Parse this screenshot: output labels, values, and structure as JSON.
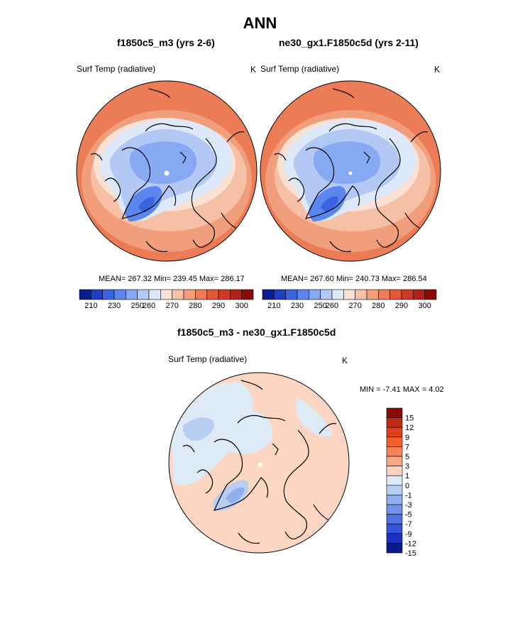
{
  "page_title": "ANN",
  "chart_data": [
    {
      "type": "heatmap",
      "projection": "north-polar-stereographic",
      "title": "f1850c5_m3 (yrs 2-6)",
      "variable": "Surf Temp (radiative)",
      "units": "K",
      "stats_text": "MEAN= 267.32  Min= 239.45  Max= 286.17",
      "stats": {
        "mean": 267.32,
        "min": 239.45,
        "max": 286.17
      },
      "colorbar_ticks": [
        "210",
        "230",
        "250",
        "260",
        "270",
        "280",
        "290",
        "300"
      ]
    },
    {
      "type": "heatmap",
      "projection": "north-polar-stereographic",
      "title": "ne30_gx1.F1850c5d (yrs 2-11)",
      "variable": "Surf Temp (radiative)",
      "units": "K",
      "stats_text": "MEAN= 267.60  Min= 240.73  Max= 286.54",
      "stats": {
        "mean": 267.6,
        "min": 240.73,
        "max": 286.54
      },
      "colorbar_ticks": [
        "210",
        "230",
        "250",
        "260",
        "270",
        "280",
        "290",
        "300"
      ]
    },
    {
      "type": "heatmap",
      "projection": "north-polar-stereographic",
      "title": "f1850c5_m3 - ne30_gx1.F1850c5d",
      "variable": "Surf Temp (radiative)",
      "units": "K",
      "stats_text": "MIN =  -7.41 MAX =   4.02",
      "stats": {
        "min": -7.41,
        "max": 4.02
      },
      "colorbar_ticks": [
        "15",
        "12",
        "9",
        "7",
        "5",
        "3",
        "1",
        "0",
        "-1",
        "-3",
        "-5",
        "-7",
        "-9",
        "-12",
        "-15"
      ]
    }
  ],
  "colors": {
    "abs_palette": [
      "#0b1d8c",
      "#1e3ec4",
      "#3a63e0",
      "#5b85ef",
      "#87a8f3",
      "#b4c8f5",
      "#dde8f8",
      "#fbe1d3",
      "#f6c0a7",
      "#f19e7c",
      "#ec7c56",
      "#e2593a",
      "#d03a22",
      "#b22113",
      "#8a0b08"
    ],
    "diff_palette": [
      "#8a0b08",
      "#c02a12",
      "#e0401c",
      "#f0602c",
      "#f6845a",
      "#f8a886",
      "#fcd6c2",
      "#deeaf6",
      "#b7cdf2",
      "#8fb0ee",
      "#6f92ec",
      "#4f72e6",
      "#3552dc",
      "#1c2fbe",
      "#0b1a86"
    ],
    "coast": "#000000"
  }
}
